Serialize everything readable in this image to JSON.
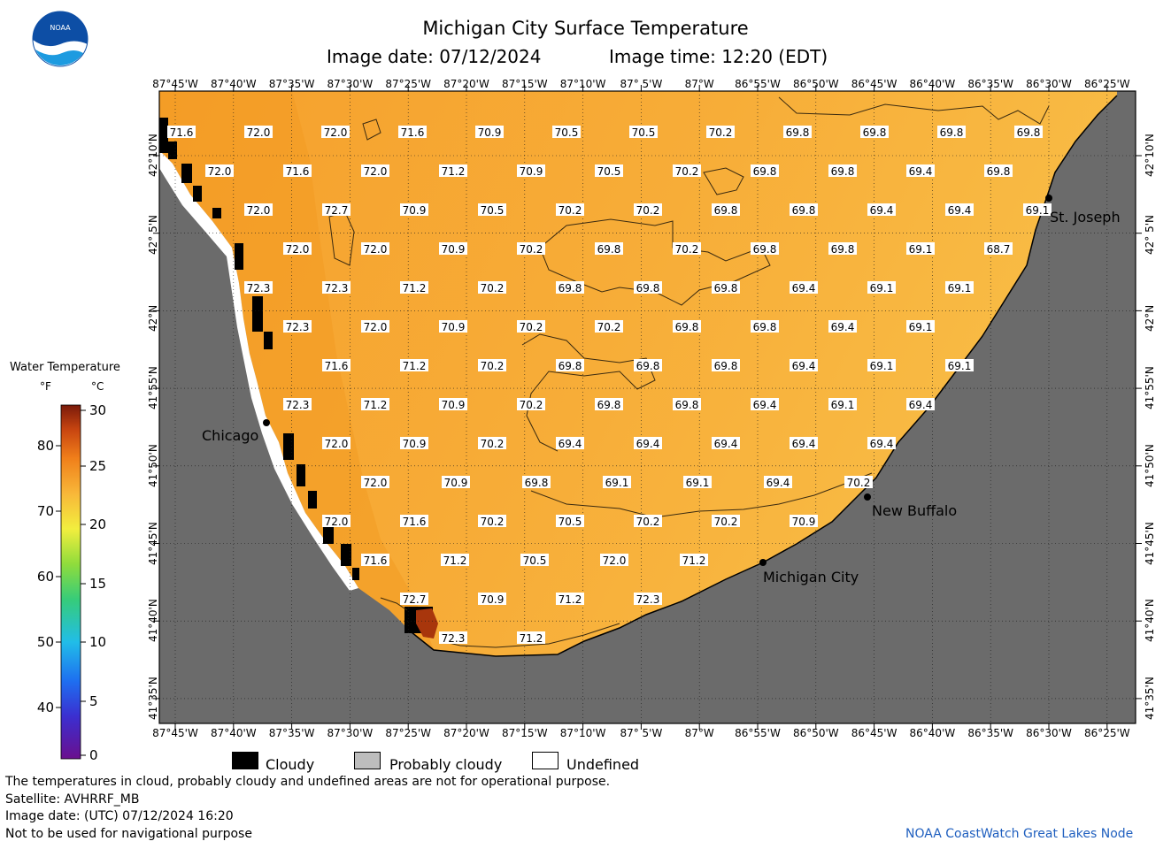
{
  "header": {
    "title": "Michigan City Surface Temperature",
    "image_date": "Image date: 07/12/2024",
    "image_time": "Image time: 12:20 (EDT)"
  },
  "logo": {
    "text": "NOAA",
    "icon": "noaa-logo-icon"
  },
  "map": {
    "lon_labels": [
      "87°45'W",
      "87°40'W",
      "87°35'W",
      "87°30'W",
      "87°25'W",
      "87°20'W",
      "87°15'W",
      "87°10'W",
      "87° 5'W",
      "87°W",
      "86°55'W",
      "86°50'W",
      "86°45'W",
      "86°40'W",
      "86°35'W",
      "86°30'W",
      "86°25'W"
    ],
    "lat_labels": [
      "42°10'N",
      "42° 5'N",
      "42°N",
      "41°55'N",
      "41°50'N",
      "41°45'N",
      "41°40'N",
      "41°35'N"
    ],
    "places": [
      {
        "name": "Chicago"
      },
      {
        "name": "St. Joseph"
      },
      {
        "name": "New Buffalo"
      },
      {
        "name": "Michigan City"
      }
    ],
    "temperature_rows": [
      [
        "71.6",
        "72.0",
        "72.0",
        "71.6",
        "70.9",
        "70.5",
        "70.5",
        "70.2",
        "69.8",
        "69.8",
        "69.8",
        "69.8"
      ],
      [
        "72.0",
        "71.6",
        "72.0",
        "71.2",
        "70.9",
        "70.5",
        "70.2",
        "69.8",
        "69.8",
        "69.4",
        "69.8"
      ],
      [
        "72.0",
        "72.7",
        "70.9",
        "70.5",
        "70.2",
        "70.2",
        "69.8",
        "69.8",
        "69.4",
        "69.4",
        "69.1"
      ],
      [
        "72.0",
        "72.0",
        "70.9",
        "70.2",
        "69.8",
        "70.2",
        "69.8",
        "69.8",
        "69.1",
        "68.7"
      ],
      [
        "72.3",
        "72.3",
        "71.2",
        "70.2",
        "69.8",
        "69.8",
        "69.8",
        "69.4",
        "69.1",
        "69.1"
      ],
      [
        "72.3",
        "72.0",
        "70.9",
        "70.2",
        "70.2",
        "69.8",
        "69.8",
        "69.4",
        "69.1"
      ],
      [
        "71.6",
        "71.2",
        "70.2",
        "69.8",
        "69.8",
        "69.8",
        "69.4",
        "69.1",
        "69.1"
      ],
      [
        "72.3",
        "71.2",
        "70.9",
        "70.2",
        "69.8",
        "69.8",
        "69.4",
        "69.1",
        "69.4"
      ],
      [
        "72.0",
        "70.9",
        "70.2",
        "69.4",
        "69.4",
        "69.4",
        "69.4",
        "69.4"
      ],
      [
        "72.0",
        "70.9",
        "69.8",
        "69.1",
        "69.1",
        "69.4",
        "70.2"
      ],
      [
        "72.0",
        "71.6",
        "70.2",
        "70.5",
        "70.2",
        "70.2",
        "70.9"
      ],
      [
        "71.6",
        "71.2",
        "70.5",
        "72.0",
        "71.2"
      ],
      [
        "72.7",
        "70.9",
        "71.2",
        "72.3"
      ],
      [
        "72.3",
        "71.2"
      ]
    ]
  },
  "legend": {
    "title": "Water Temperature",
    "unit_f": "°F",
    "unit_c": "°C",
    "f_ticks": [
      "80",
      "70",
      "60",
      "50",
      "40"
    ],
    "c_ticks": [
      "30",
      "25",
      "20",
      "15",
      "10",
      "5",
      "0"
    ],
    "keys": [
      {
        "label": "Cloudy",
        "color": "#000000"
      },
      {
        "label": "Probably cloudy",
        "color": "#bdbdbd"
      },
      {
        "label": "Undefined",
        "color": "#ffffff"
      }
    ]
  },
  "notes": {
    "line1": "The temperatures in cloud, probably cloudy and undefined areas are not for operational purpose.",
    "line2": "Satellite: AVHRRF_MB",
    "line3": "Image date: (UTC) 07/12/2024  16:20",
    "line4": "Not to be used for navigational purpose",
    "credit": "NOAA CoastWatch Great Lakes Node"
  },
  "colors": {
    "land": "#6b6b6b",
    "water_warm": "#f6a330",
    "water_cool": "#f9b943",
    "credit": "#1f5fbf"
  }
}
